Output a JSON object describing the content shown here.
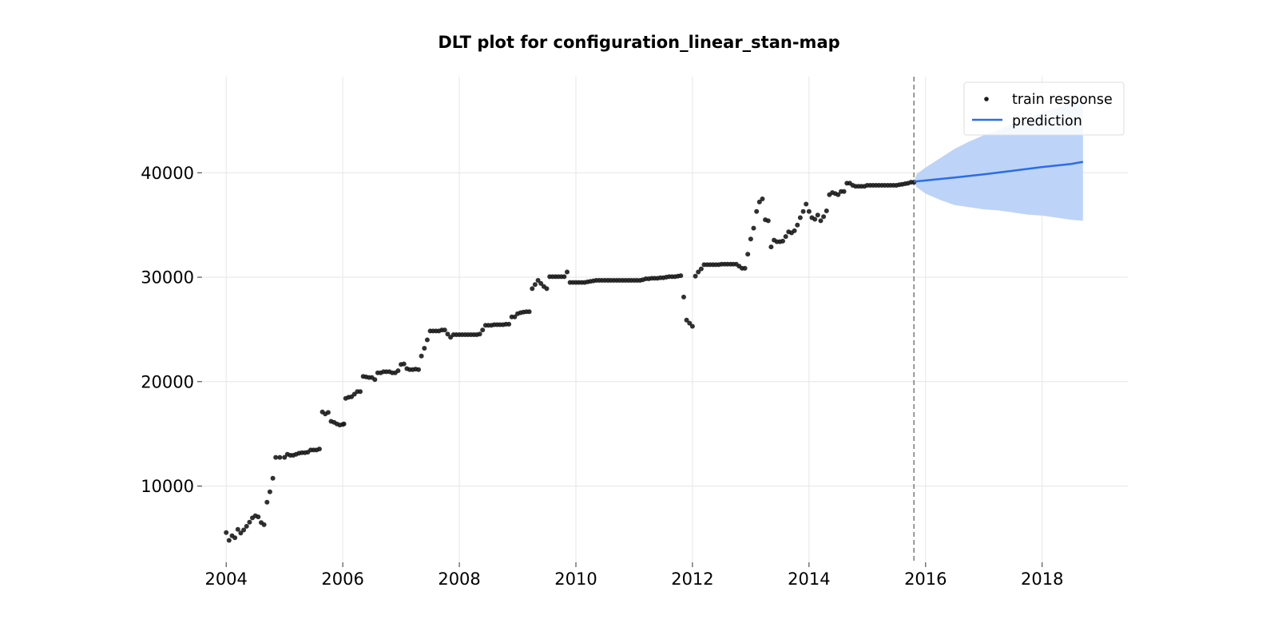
{
  "chart_data": {
    "type": "scatter",
    "title": "DLT plot for configuration_linear_stan-map",
    "xlabel": "",
    "ylabel": "",
    "xlim": [
      2003.6,
      2019.47
    ],
    "ylim": [
      2700,
      49200
    ],
    "x_ticks": [
      2004,
      2006,
      2008,
      2010,
      2012,
      2014,
      2016,
      2018
    ],
    "y_ticks": [
      10000,
      20000,
      30000,
      40000
    ],
    "grid": true,
    "legend_position": "top-right",
    "split_marker_x": 2015.8,
    "colors": {
      "train": "#1a1a1a",
      "prediction": "#2a6de6",
      "band": "#bdd3f8",
      "split_line": "#7a7a7a"
    },
    "series": [
      {
        "name": "train response",
        "kind": "scatter",
        "points": [
          [
            2004.0,
            5550
          ],
          [
            2004.05,
            4800
          ],
          [
            2004.1,
            5250
          ],
          [
            2004.15,
            5050
          ],
          [
            2004.2,
            5850
          ],
          [
            2004.25,
            5500
          ],
          [
            2004.3,
            5800
          ],
          [
            2004.35,
            6150
          ],
          [
            2004.4,
            6550
          ],
          [
            2004.45,
            6950
          ],
          [
            2004.5,
            7150
          ],
          [
            2004.55,
            7050
          ],
          [
            2004.6,
            6500
          ],
          [
            2004.65,
            6300
          ],
          [
            2004.7,
            8450
          ],
          [
            2004.75,
            9450
          ],
          [
            2004.8,
            10750
          ],
          [
            2004.85,
            12750
          ],
          [
            2004.92,
            12750
          ],
          [
            2005.0,
            12750
          ],
          [
            2005.05,
            13050
          ],
          [
            2005.1,
            12950
          ],
          [
            2005.15,
            12950
          ],
          [
            2005.2,
            13050
          ],
          [
            2005.25,
            13150
          ],
          [
            2005.3,
            13200
          ],
          [
            2005.35,
            13200
          ],
          [
            2005.4,
            13250
          ],
          [
            2005.45,
            13450
          ],
          [
            2005.5,
            13450
          ],
          [
            2005.55,
            13450
          ],
          [
            2005.6,
            13550
          ],
          [
            2005.65,
            17100
          ],
          [
            2005.7,
            16900
          ],
          [
            2005.75,
            17050
          ],
          [
            2005.8,
            16200
          ],
          [
            2005.85,
            16100
          ],
          [
            2005.9,
            15950
          ],
          [
            2005.95,
            15850
          ],
          [
            2006.0,
            15900
          ],
          [
            2006.02,
            15950
          ],
          [
            2006.05,
            18400
          ],
          [
            2006.1,
            18500
          ],
          [
            2006.15,
            18550
          ],
          [
            2006.2,
            18800
          ],
          [
            2006.25,
            19050
          ],
          [
            2006.3,
            19050
          ],
          [
            2006.35,
            20500
          ],
          [
            2006.4,
            20450
          ],
          [
            2006.45,
            20400
          ],
          [
            2006.5,
            20400
          ],
          [
            2006.55,
            20200
          ],
          [
            2006.6,
            20850
          ],
          [
            2006.65,
            20850
          ],
          [
            2006.7,
            20950
          ],
          [
            2006.75,
            20950
          ],
          [
            2006.8,
            20950
          ],
          [
            2006.85,
            20850
          ],
          [
            2006.9,
            20850
          ],
          [
            2006.95,
            21050
          ],
          [
            2007.0,
            21650
          ],
          [
            2007.05,
            21700
          ],
          [
            2007.1,
            21250
          ],
          [
            2007.15,
            21150
          ],
          [
            2007.2,
            21150
          ],
          [
            2007.25,
            21200
          ],
          [
            2007.3,
            21150
          ],
          [
            2007.35,
            22450
          ],
          [
            2007.4,
            23200
          ],
          [
            2007.45,
            24000
          ],
          [
            2007.5,
            24850
          ],
          [
            2007.55,
            24850
          ],
          [
            2007.6,
            24850
          ],
          [
            2007.65,
            24850
          ],
          [
            2007.7,
            24950
          ],
          [
            2007.75,
            24950
          ],
          [
            2007.8,
            24550
          ],
          [
            2007.85,
            24250
          ],
          [
            2007.9,
            24500
          ],
          [
            2007.95,
            24500
          ],
          [
            2008.0,
            24500
          ],
          [
            2008.05,
            24500
          ],
          [
            2008.1,
            24500
          ],
          [
            2008.15,
            24500
          ],
          [
            2008.2,
            24500
          ],
          [
            2008.25,
            24500
          ],
          [
            2008.3,
            24500
          ],
          [
            2008.35,
            24550
          ],
          [
            2008.4,
            24950
          ],
          [
            2008.45,
            25400
          ],
          [
            2008.5,
            25400
          ],
          [
            2008.55,
            25400
          ],
          [
            2008.6,
            25450
          ],
          [
            2008.65,
            25450
          ],
          [
            2008.7,
            25450
          ],
          [
            2008.75,
            25450
          ],
          [
            2008.8,
            25500
          ],
          [
            2008.85,
            25500
          ],
          [
            2008.9,
            26200
          ],
          [
            2008.95,
            26200
          ],
          [
            2009.0,
            26500
          ],
          [
            2009.05,
            26600
          ],
          [
            2009.1,
            26650
          ],
          [
            2009.15,
            26700
          ],
          [
            2009.2,
            26700
          ],
          [
            2009.25,
            28900
          ],
          [
            2009.3,
            29300
          ],
          [
            2009.35,
            29700
          ],
          [
            2009.4,
            29400
          ],
          [
            2009.45,
            29100
          ],
          [
            2009.5,
            28900
          ],
          [
            2009.55,
            30050
          ],
          [
            2009.6,
            30050
          ],
          [
            2009.65,
            30050
          ],
          [
            2009.7,
            30050
          ],
          [
            2009.75,
            30050
          ],
          [
            2009.8,
            30050
          ],
          [
            2009.85,
            30500
          ],
          [
            2009.9,
            29500
          ],
          [
            2009.95,
            29500
          ],
          [
            2010.0,
            29500
          ],
          [
            2010.05,
            29500
          ],
          [
            2010.1,
            29500
          ],
          [
            2010.15,
            29500
          ],
          [
            2010.2,
            29550
          ],
          [
            2010.25,
            29600
          ],
          [
            2010.3,
            29650
          ],
          [
            2010.35,
            29700
          ],
          [
            2010.4,
            29700
          ],
          [
            2010.45,
            29700
          ],
          [
            2010.5,
            29700
          ],
          [
            2010.55,
            29700
          ],
          [
            2010.6,
            29700
          ],
          [
            2010.65,
            29700
          ],
          [
            2010.7,
            29700
          ],
          [
            2010.75,
            29700
          ],
          [
            2010.8,
            29700
          ],
          [
            2010.85,
            29700
          ],
          [
            2010.9,
            29700
          ],
          [
            2010.95,
            29700
          ],
          [
            2011.0,
            29700
          ],
          [
            2011.05,
            29700
          ],
          [
            2011.1,
            29700
          ],
          [
            2011.15,
            29750
          ],
          [
            2011.2,
            29850
          ],
          [
            2011.25,
            29850
          ],
          [
            2011.3,
            29900
          ],
          [
            2011.35,
            29900
          ],
          [
            2011.4,
            29900
          ],
          [
            2011.45,
            29950
          ],
          [
            2011.5,
            29950
          ],
          [
            2011.55,
            30000
          ],
          [
            2011.6,
            30050
          ],
          [
            2011.65,
            30050
          ],
          [
            2011.7,
            30050
          ],
          [
            2011.75,
            30100
          ],
          [
            2011.8,
            30150
          ],
          [
            2011.85,
            28100
          ],
          [
            2011.9,
            25900
          ],
          [
            2011.95,
            25600
          ],
          [
            2012.0,
            25300
          ],
          [
            2012.05,
            30100
          ],
          [
            2012.1,
            30500
          ],
          [
            2012.15,
            30800
          ],
          [
            2012.2,
            31200
          ],
          [
            2012.25,
            31200
          ],
          [
            2012.3,
            31200
          ],
          [
            2012.35,
            31200
          ],
          [
            2012.4,
            31200
          ],
          [
            2012.45,
            31200
          ],
          [
            2012.5,
            31250
          ],
          [
            2012.55,
            31250
          ],
          [
            2012.6,
            31250
          ],
          [
            2012.65,
            31250
          ],
          [
            2012.7,
            31250
          ],
          [
            2012.75,
            31250
          ],
          [
            2012.8,
            31050
          ],
          [
            2012.85,
            30850
          ],
          [
            2012.9,
            30850
          ],
          [
            2012.95,
            32200
          ],
          [
            2013.0,
            33650
          ],
          [
            2013.05,
            34700
          ],
          [
            2013.1,
            36300
          ],
          [
            2013.15,
            37200
          ],
          [
            2013.2,
            37500
          ],
          [
            2013.25,
            35500
          ],
          [
            2013.3,
            35400
          ],
          [
            2013.35,
            32900
          ],
          [
            2013.4,
            33550
          ],
          [
            2013.45,
            33400
          ],
          [
            2013.5,
            33400
          ],
          [
            2013.55,
            33450
          ],
          [
            2013.6,
            33900
          ],
          [
            2013.65,
            34350
          ],
          [
            2013.7,
            34250
          ],
          [
            2013.75,
            34450
          ],
          [
            2013.8,
            35000
          ],
          [
            2013.85,
            35700
          ],
          [
            2013.9,
            36300
          ],
          [
            2013.95,
            37000
          ],
          [
            2014.0,
            36300
          ],
          [
            2014.05,
            35700
          ],
          [
            2014.1,
            35550
          ],
          [
            2014.15,
            35950
          ],
          [
            2014.2,
            35400
          ],
          [
            2014.25,
            35800
          ],
          [
            2014.3,
            36350
          ],
          [
            2014.35,
            37900
          ],
          [
            2014.4,
            38100
          ],
          [
            2014.45,
            38000
          ],
          [
            2014.5,
            37900
          ],
          [
            2014.55,
            38200
          ],
          [
            2014.6,
            38200
          ],
          [
            2014.65,
            39000
          ],
          [
            2014.7,
            39000
          ],
          [
            2014.75,
            38800
          ],
          [
            2014.8,
            38700
          ],
          [
            2014.85,
            38700
          ],
          [
            2014.9,
            38700
          ],
          [
            2014.95,
            38700
          ],
          [
            2015.0,
            38800
          ],
          [
            2015.05,
            38800
          ],
          [
            2015.1,
            38800
          ],
          [
            2015.15,
            38800
          ],
          [
            2015.2,
            38800
          ],
          [
            2015.25,
            38800
          ],
          [
            2015.3,
            38800
          ],
          [
            2015.35,
            38800
          ],
          [
            2015.4,
            38800
          ],
          [
            2015.45,
            38800
          ],
          [
            2015.5,
            38800
          ],
          [
            2015.55,
            38850
          ],
          [
            2015.6,
            38900
          ],
          [
            2015.65,
            38950
          ],
          [
            2015.7,
            39000
          ],
          [
            2015.75,
            39100
          ],
          [
            2015.8,
            39100
          ]
        ]
      },
      {
        "name": "prediction",
        "kind": "line",
        "points": [
          [
            2015.8,
            39150
          ],
          [
            2016.5,
            39550
          ],
          [
            2017.0,
            39850
          ],
          [
            2017.5,
            40200
          ],
          [
            2018.0,
            40550
          ],
          [
            2018.5,
            40850
          ],
          [
            2018.7,
            41050
          ]
        ]
      }
    ],
    "prediction_band": [
      [
        2015.8,
        39200,
        39100
      ],
      [
        2015.85,
        39900,
        38600
      ],
      [
        2016.0,
        40500,
        38000
      ],
      [
        2016.25,
        41400,
        37400
      ],
      [
        2016.5,
        42300,
        36900
      ],
      [
        2016.75,
        43000,
        36700
      ],
      [
        2017.0,
        43600,
        36500
      ],
      [
        2017.25,
        44100,
        36400
      ],
      [
        2017.5,
        44700,
        36200
      ],
      [
        2017.75,
        45200,
        36000
      ],
      [
        2018.0,
        45800,
        35900
      ],
      [
        2018.25,
        46200,
        35700
      ],
      [
        2018.5,
        46700,
        35500
      ],
      [
        2018.7,
        47000,
        35400
      ]
    ]
  }
}
